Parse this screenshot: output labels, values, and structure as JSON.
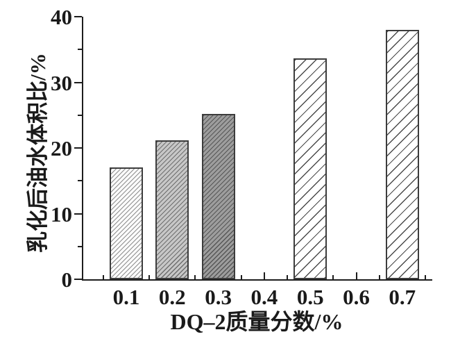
{
  "chart_data": {
    "type": "bar",
    "title": "",
    "xlabel": "DQ–2质量分数/%",
    "ylabel": "乳化后油水体积比/%",
    "categories": [
      0.1,
      0.2,
      0.3,
      0.5,
      0.7
    ],
    "values": [
      17.0,
      21.2,
      25.2,
      33.7,
      38.0
    ],
    "x_axis": {
      "min": 0,
      "max": 0.76,
      "major_ticks": [
        0.1,
        0.2,
        0.3,
        0.4,
        0.5,
        0.6,
        0.7
      ],
      "minor_ticks": [
        0.05,
        0.15,
        0.25,
        0.35,
        0.45,
        0.55,
        0.65,
        0.75
      ],
      "tick_direction": "in"
    },
    "y_axis": {
      "min": 0,
      "max": 40,
      "major_ticks": [
        0,
        10,
        20,
        30,
        40
      ],
      "minor_ticks": [
        5,
        15,
        25,
        35
      ],
      "tick_direction": "out"
    },
    "grid": false,
    "legend": false,
    "bar_styles": [
      {
        "fill": "#fbfbfb",
        "hatch": "fine-diagonal",
        "hatch_color": "#8f8f8f"
      },
      {
        "fill": "#c7c7c7",
        "hatch": "fine-diagonal",
        "hatch_color": "#6e6e6e"
      },
      {
        "fill": "#9d9d9d",
        "hatch": "fine-diagonal",
        "hatch_color": "#565656"
      },
      {
        "fill": "#ffffff",
        "hatch": "sparse-diagonal",
        "hatch_color": "#4a4a4a"
      },
      {
        "fill": "#ffffff",
        "hatch": "sparse-diagonal",
        "hatch_color": "#4a4a4a"
      }
    ],
    "colors": {
      "axis": "#1d1d1d",
      "text": "#1a1a1a",
      "bar_border": "#3c3c3c"
    }
  }
}
